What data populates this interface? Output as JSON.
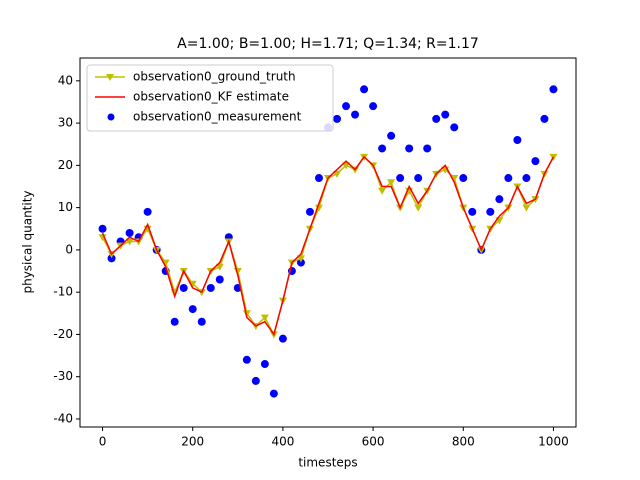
{
  "chart_data": {
    "type": "line",
    "title": "A=1.00; B=1.00; H=1.71; Q=1.34; R=1.17",
    "xlabel": "timesteps",
    "ylabel": "physical quantity",
    "x": [
      0,
      20,
      40,
      60,
      80,
      100,
      120,
      140,
      160,
      180,
      200,
      220,
      240,
      260,
      280,
      300,
      320,
      340,
      360,
      380,
      400,
      420,
      440,
      460,
      480,
      500,
      520,
      540,
      560,
      580,
      600,
      620,
      640,
      660,
      680,
      700,
      720,
      740,
      760,
      780,
      800,
      820,
      840,
      860,
      880,
      900,
      920,
      940,
      960,
      980,
      1000
    ],
    "series": [
      {
        "name": "observation0_ground_truth",
        "type": "line",
        "marker": "v",
        "color": "#bfbf00",
        "values": [
          3,
          -1,
          1,
          2,
          2,
          5,
          0,
          -3,
          -10,
          -5,
          -8,
          -10,
          -5,
          -4,
          2,
          -5,
          -15,
          -18,
          -16,
          -20,
          -12,
          -3,
          -2,
          5,
          10,
          17,
          18,
          20,
          19,
          22,
          20,
          14,
          16,
          10,
          14,
          10,
          14,
          18,
          19,
          17,
          10,
          5,
          0,
          5,
          7,
          10,
          15,
          10,
          12,
          18,
          22
        ]
      },
      {
        "name": "observation0_KF estimate",
        "type": "line",
        "color": "#ff0000",
        "values": [
          4,
          -1,
          1,
          3,
          2,
          6,
          0,
          -4,
          -11,
          -5,
          -9,
          -10,
          -5,
          -3,
          2,
          -6,
          -16,
          -18,
          -17,
          -20,
          -12,
          -3,
          -1,
          5,
          11,
          17,
          19,
          21,
          19,
          22,
          20,
          15,
          15,
          10,
          15,
          11,
          14,
          18,
          20,
          16,
          10,
          5,
          0,
          5,
          8,
          10,
          15,
          11,
          12,
          18,
          22
        ]
      },
      {
        "name": "observation0_measurement",
        "type": "scatter",
        "color": "#0000ff",
        "values": [
          5,
          -2,
          2,
          4,
          3,
          9,
          0,
          -5,
          -17,
          -9,
          -14,
          -17,
          -9,
          -7,
          3,
          -9,
          -26,
          -31,
          -27,
          -34,
          -21,
          -5,
          -3,
          9,
          17,
          29,
          31,
          34,
          32,
          38,
          34,
          24,
          27,
          17,
          24,
          17,
          24,
          31,
          32,
          29,
          17,
          9,
          0,
          9,
          12,
          17,
          26,
          17,
          21,
          31,
          38
        ]
      }
    ],
    "xlim": [
      -50,
      1050
    ],
    "ylim": [
      -41.9,
      45.4
    ],
    "xticks": [
      0,
      200,
      400,
      600,
      800,
      1000
    ],
    "yticks": [
      -40,
      -30,
      -20,
      -10,
      0,
      10,
      20,
      30,
      40
    ],
    "legend": "upper left"
  }
}
